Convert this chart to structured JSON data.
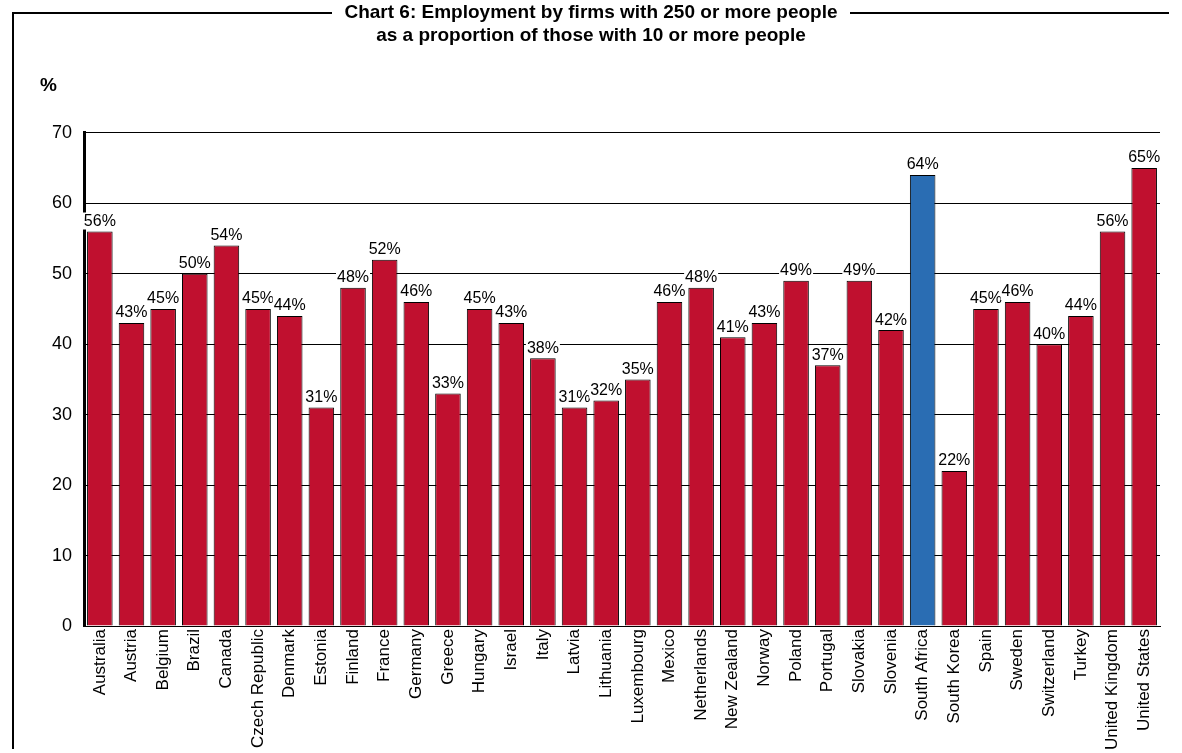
{
  "chart_data": {
    "type": "bar",
    "title": "Chart 6: Employment by firms with 250 or more people\nas a proportion of those with 10 or more people",
    "ylabel": "%",
    "categories": [
      "Australia",
      "Austria",
      "Belgium",
      "Brazil",
      "Canada",
      "Czech Republic",
      "Denmark",
      "Estonia",
      "Finland",
      "France",
      "Germany",
      "Greece",
      "Hungary",
      "Israel",
      "Italy",
      "Latvia",
      "Lithuania",
      "Luxembourg",
      "Mexico",
      "Netherlands",
      "New Zealand",
      "Norway",
      "Poland",
      "Portugal",
      "Slovakia",
      "Slovenia",
      "South Africa",
      "South Korea",
      "Spain",
      "Sweden",
      "Switzerland",
      "Turkey",
      "United Kingdom",
      "United States"
    ],
    "values": [
      56,
      43,
      45,
      50,
      54,
      45,
      44,
      31,
      48,
      52,
      46,
      33,
      45,
      43,
      38,
      31,
      32,
      35,
      46,
      48,
      41,
      43,
      49,
      37,
      49,
      42,
      64,
      22,
      45,
      46,
      40,
      44,
      56,
      65
    ],
    "colors": [
      "#c0102f",
      "#c0102f",
      "#c0102f",
      "#c0102f",
      "#c0102f",
      "#c0102f",
      "#c0102f",
      "#c0102f",
      "#c0102f",
      "#c0102f",
      "#c0102f",
      "#c0102f",
      "#c0102f",
      "#c0102f",
      "#c0102f",
      "#c0102f",
      "#c0102f",
      "#c0102f",
      "#c0102f",
      "#c0102f",
      "#c0102f",
      "#c0102f",
      "#c0102f",
      "#c0102f",
      "#c0102f",
      "#c0102f",
      "#2a6db3",
      "#c0102f",
      "#c0102f",
      "#c0102f",
      "#c0102f",
      "#c0102f",
      "#c0102f",
      "#c0102f"
    ],
    "value_labels": [
      "56%",
      "43%",
      "45%",
      "50%",
      "54%",
      "45%",
      "44%",
      "31%",
      "48%",
      "52%",
      "46%",
      "33%",
      "45%",
      "43%",
      "38%",
      "31%",
      "32%",
      "35%",
      "46%",
      "48%",
      "41%",
      "43%",
      "49%",
      "37%",
      "49%",
      "42%",
      "64%",
      "22%",
      "45%",
      "46%",
      "40%",
      "44%",
      "56%",
      "65%"
    ],
    "ylim": [
      0,
      70
    ],
    "yticks": [
      0,
      10,
      20,
      30,
      40,
      50,
      60,
      70
    ],
    "grid": "y",
    "legend": false
  }
}
